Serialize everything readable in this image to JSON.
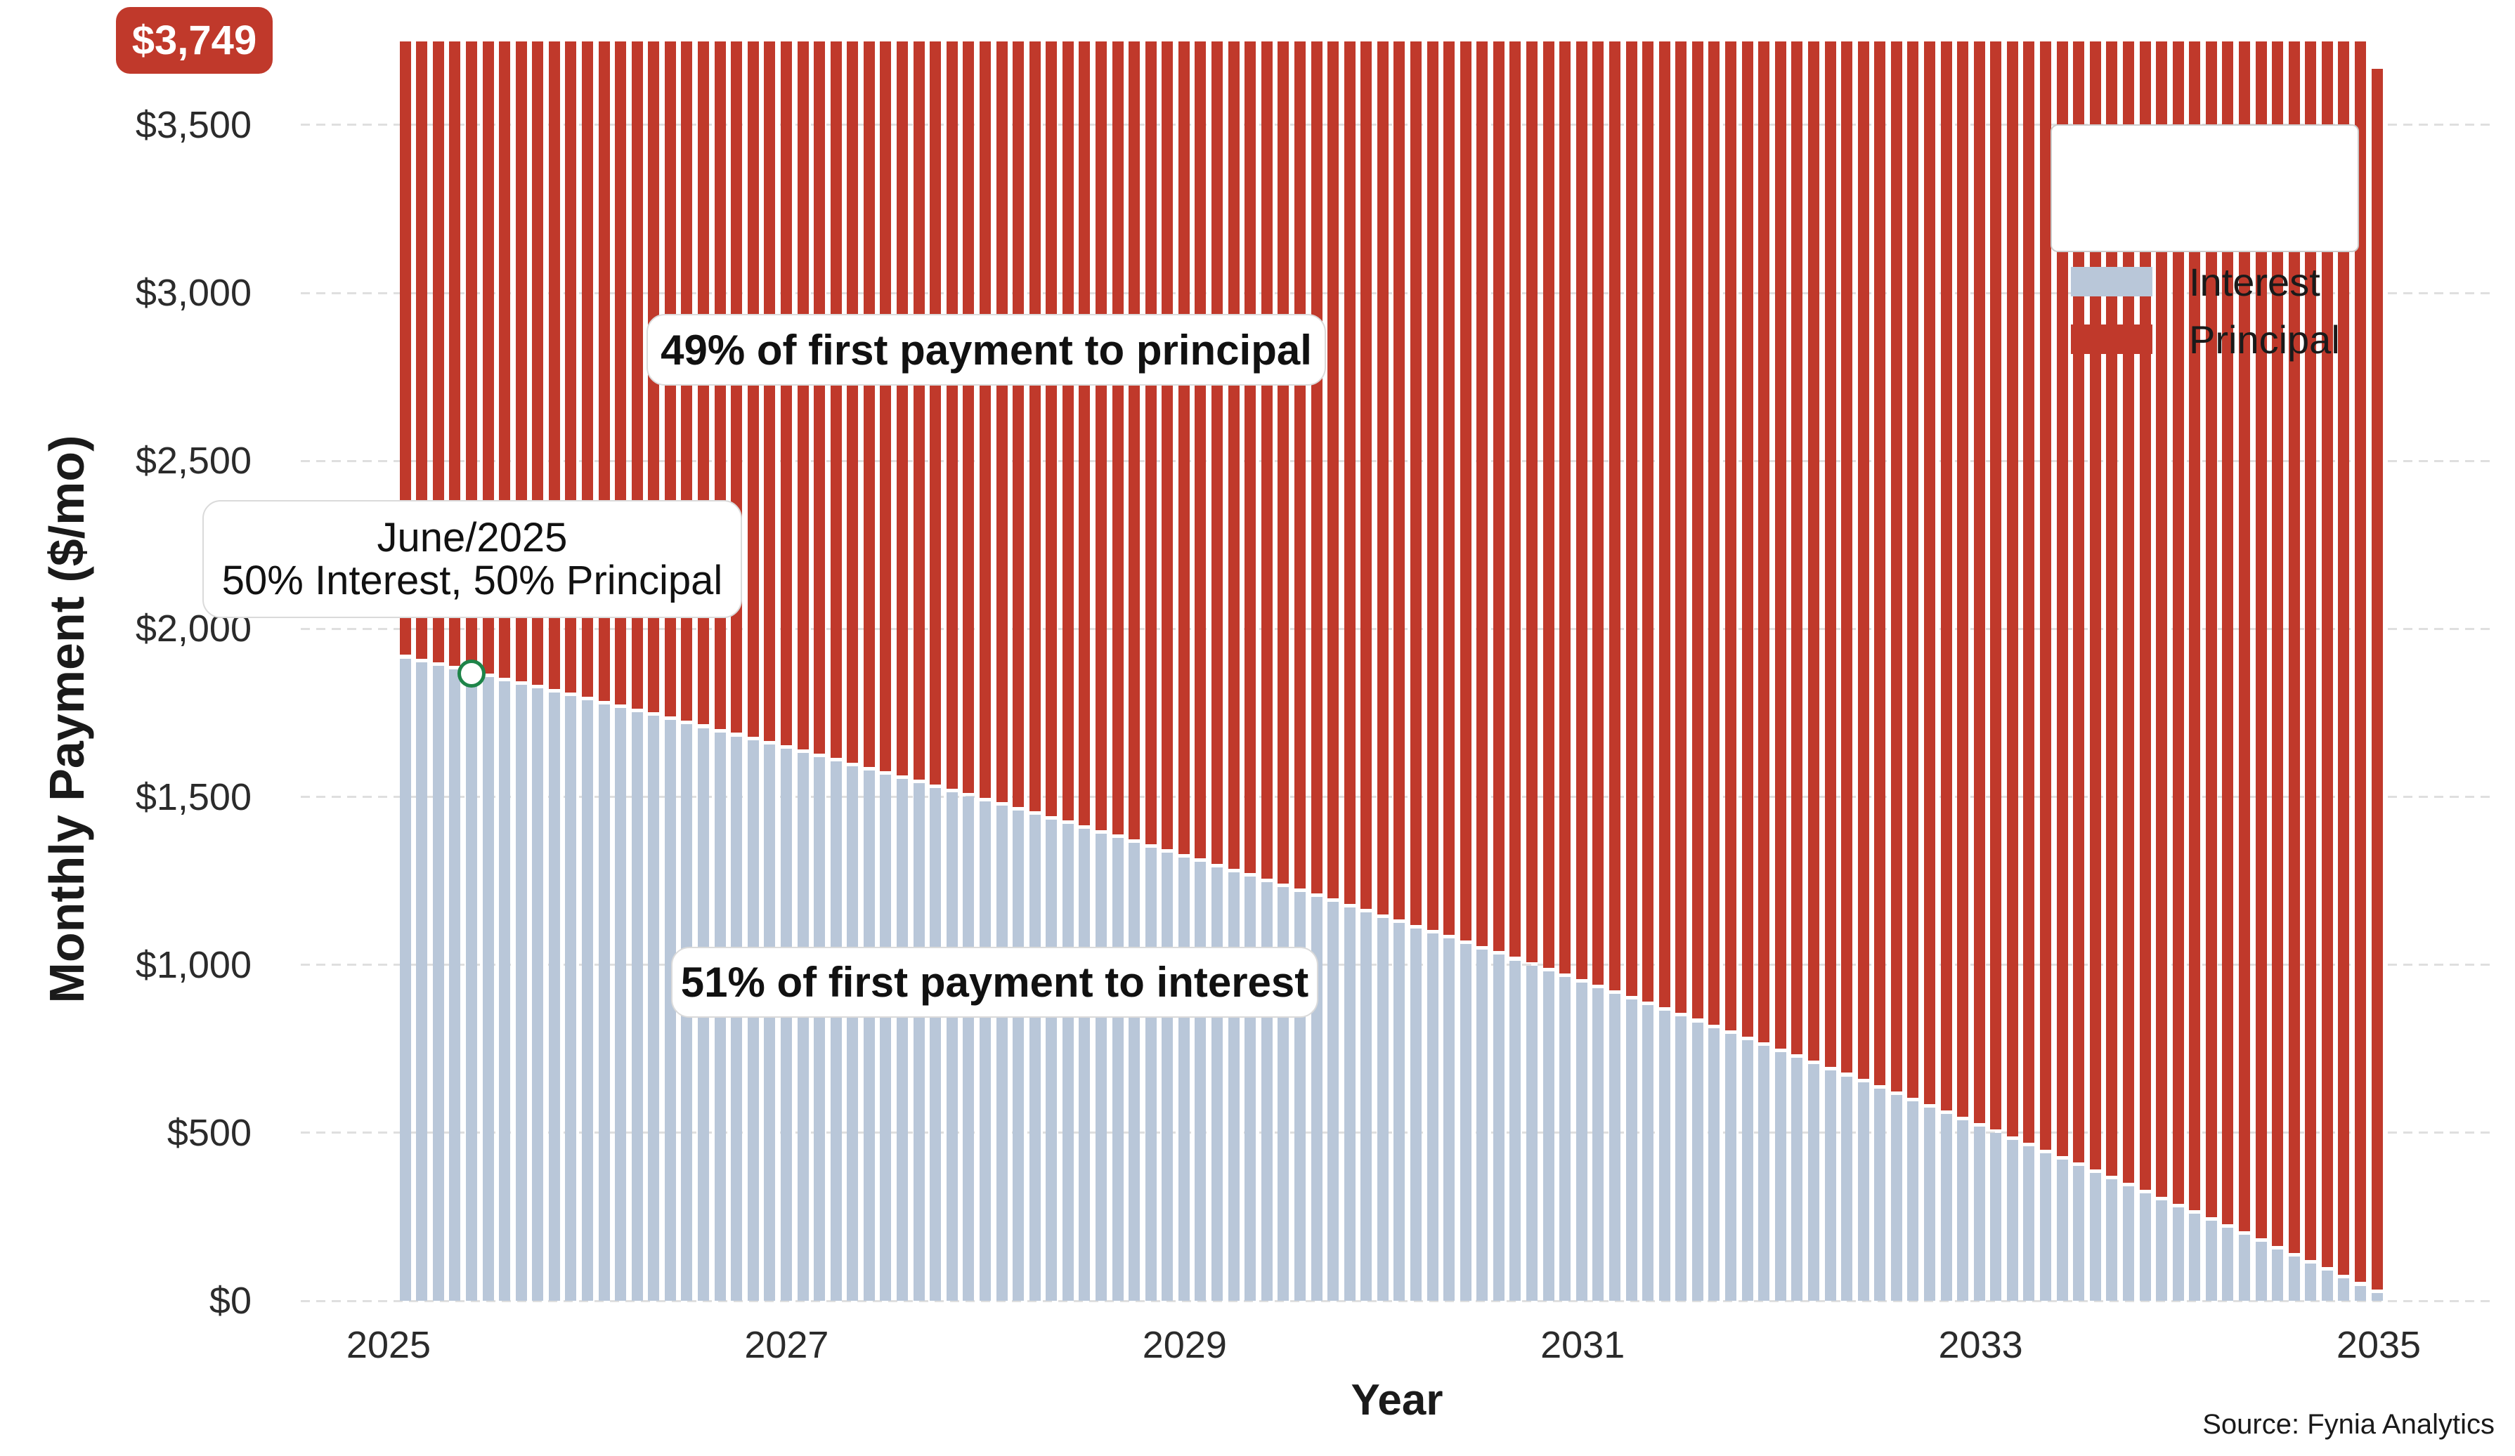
{
  "badge": {
    "label": "$3,749",
    "color": "#c0392b"
  },
  "y_axis": {
    "title": "Monthly Payment ($/mo)",
    "ticks": [
      {
        "v": 0,
        "label": "$0"
      },
      {
        "v": 500,
        "label": "$500"
      },
      {
        "v": 1000,
        "label": "$1,000"
      },
      {
        "v": 1500,
        "label": "$1,500"
      },
      {
        "v": 2000,
        "label": "$2,000"
      },
      {
        "v": 2500,
        "label": "$2,500"
      },
      {
        "v": 3000,
        "label": "$3,000"
      },
      {
        "v": 3500,
        "label": "$3,500"
      }
    ]
  },
  "x_axis": {
    "title": "Year",
    "ticks": [
      {
        "year": 2025,
        "label": "2025"
      },
      {
        "year": 2027,
        "label": "2027"
      },
      {
        "year": 2029,
        "label": "2029"
      },
      {
        "year": 2031,
        "label": "2031"
      },
      {
        "year": 2033,
        "label": "2033"
      },
      {
        "year": 2035,
        "label": "2035"
      }
    ]
  },
  "legend": {
    "items": [
      {
        "label": "Interest",
        "color": "#b9c7d9"
      },
      {
        "label": "Principal",
        "color": "#c0392b"
      }
    ]
  },
  "annotations": {
    "principal_share": "49% of first payment to principal",
    "interest_share": "51% of first payment to interest",
    "crossover_line1": "June/2025",
    "crossover_line2": "50% Interest, 50% Principal"
  },
  "source": "Source: Fynia Analytics",
  "chart_data": {
    "type": "bar",
    "stacked": true,
    "title": "",
    "xlabel": "Year",
    "ylabel": "Monthly Payment ($/mo)",
    "ylim": [
      0,
      3873
    ],
    "grid": "horizontal-dashed",
    "legend_position": "upper right",
    "x_start_month": "2025-02",
    "x_end_month": "2035-01",
    "n_months": 120,
    "regular_payment": 3749,
    "final_payment": 3668,
    "bar_colors": {
      "Interest": "#b9c7d9",
      "Principal": "#c0392b"
    },
    "series": [
      {
        "name": "Interest",
        "values": [
          1912,
          1901,
          1890,
          1879,
          1868,
          1857,
          1845,
          1834,
          1823,
          1811,
          1800,
          1788,
          1776,
          1764,
          1753,
          1741,
          1729,
          1717,
          1705,
          1692,
          1680,
          1668,
          1655,
          1643,
          1630,
          1618,
          1605,
          1592,
          1579,
          1566,
          1553,
          1540,
          1527,
          1514,
          1501,
          1487,
          1474,
          1460,
          1447,
          1433,
          1419,
          1405,
          1391,
          1377,
          1363,
          1349,
          1334,
          1320,
          1306,
          1291,
          1276,
          1262,
          1247,
          1232,
          1217,
          1202,
          1187,
          1171,
          1156,
          1140,
          1125,
          1109,
          1094,
          1078,
          1062,
          1046,
          1030,
          1013,
          997,
          981,
          964,
          948,
          931,
          914,
          897,
          880,
          863,
          846,
          829,
          811,
          794,
          776,
          758,
          740,
          723,
          705,
          686,
          668,
          650,
          631,
          613,
          594,
          575,
          556,
          537,
          518,
          499,
          479,
          460,
          440,
          421,
          401,
          381,
          361,
          341,
          320,
          300,
          279,
          259,
          238,
          217,
          196,
          175,
          153,
          132,
          110,
          89,
          67,
          45,
          23
        ]
      },
      {
        "name": "Principal",
        "values": [
          1837,
          1848,
          1859,
          1870,
          1881,
          1892,
          1904,
          1915,
          1926,
          1938,
          1949,
          1961,
          1973,
          1985,
          1996,
          2008,
          2020,
          2032,
          2044,
          2057,
          2069,
          2081,
          2094,
          2106,
          2119,
          2131,
          2144,
          2157,
          2170,
          2183,
          2196,
          2209,
          2222,
          2235,
          2248,
          2262,
          2275,
          2289,
          2302,
          2316,
          2330,
          2344,
          2358,
          2372,
          2386,
          2400,
          2415,
          2429,
          2443,
          2458,
          2473,
          2487,
          2502,
          2517,
          2532,
          2547,
          2562,
          2578,
          2593,
          2609,
          2624,
          2640,
          2655,
          2671,
          2687,
          2703,
          2719,
          2736,
          2752,
          2768,
          2785,
          2801,
          2818,
          2835,
          2852,
          2869,
          2886,
          2903,
          2920,
          2938,
          2955,
          2973,
          2991,
          3009,
          3026,
          3044,
          3063,
          3081,
          3099,
          3118,
          3136,
          3155,
          3174,
          3193,
          3212,
          3231,
          3250,
          3270,
          3289,
          3309,
          3328,
          3348,
          3368,
          3388,
          3408,
          3429,
          3449,
          3470,
          3490,
          3511,
          3532,
          3553,
          3574,
          3596,
          3617,
          3639,
          3660,
          3682,
          3704,
          3645
        ]
      }
    ],
    "highlight_point": {
      "month": "2025-06",
      "month_index": 5,
      "interest": 1868,
      "interest_pct": 50,
      "principal_pct": 50,
      "marker_color": "#1e8449"
    },
    "first_payment_split": {
      "interest_pct": 51,
      "principal_pct": 49
    }
  }
}
